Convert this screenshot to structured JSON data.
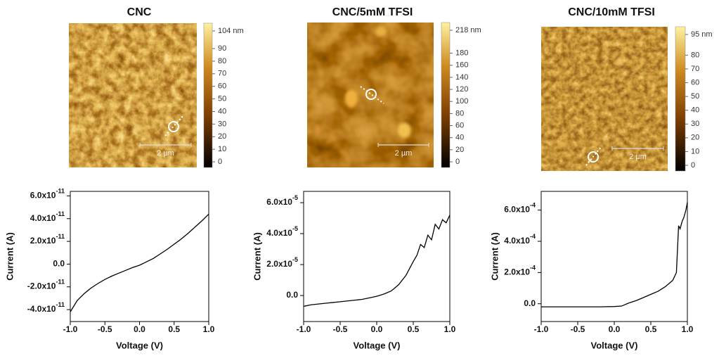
{
  "chart_data": [
    {
      "type": "line",
      "title": "CNC",
      "x_label": "Voltage (V)",
      "y_label": "Current (A)",
      "color": "#000000",
      "x": [
        -1.0,
        -0.9,
        -0.8,
        -0.7,
        -0.6,
        -0.5,
        -0.4,
        -0.3,
        -0.2,
        -0.1,
        0.0,
        0.1,
        0.2,
        0.3,
        0.4,
        0.5,
        0.6,
        0.7,
        0.8,
        0.9,
        1.0
      ],
      "values": [
        -4.2e-11,
        -3.2e-11,
        -2.6e-11,
        -2.1e-11,
        -1.7e-11,
        -1.35e-11,
        -1.05e-11,
        -8e-12,
        -5.5e-12,
        -3e-12,
        -1e-12,
        2e-12,
        5e-12,
        9e-12,
        1.3e-11,
        1.75e-11,
        2.2e-11,
        2.7e-11,
        3.25e-11,
        3.8e-11,
        4.4e-11
      ],
      "xlim": [
        -1.0,
        1.0
      ],
      "ylim": [
        -5.05e-11,
        6.4e-11
      ],
      "xticks": [
        {
          "value": -1.0,
          "label": "-1.0"
        },
        {
          "value": -0.5,
          "label": "-0.5"
        },
        {
          "value": 0.0,
          "label": "0.0"
        },
        {
          "value": 0.5,
          "label": "0.5"
        },
        {
          "value": 1.0,
          "label": "1.0"
        }
      ],
      "yticks": [
        {
          "value": -4e-11,
          "label": "-4.0x10-11"
        },
        {
          "value": -2e-11,
          "label": "-2.0x10-11"
        },
        {
          "value": 0,
          "label": "0.0"
        },
        {
          "value": 2e-11,
          "label": "2.0x10-11"
        },
        {
          "value": 4e-11,
          "label": "4.0x10-11"
        },
        {
          "value": 6e-11,
          "label": "6.0x10-11"
        }
      ],
      "image": {
        "scale_bar": "2 µm",
        "colorbar_lim": [
          0,
          104
        ],
        "colorbar_ticks": [
          0,
          10,
          20,
          30,
          40,
          50,
          60,
          70,
          80,
          90,
          {
            "value": 104,
            "label": "104 nm"
          }
        ]
      }
    },
    {
      "type": "line",
      "title": "CNC/5mM TFSI",
      "x_label": "Voltage (V)",
      "y_label": "Current (A)",
      "color": "#000000",
      "x": [
        -1.0,
        -0.9,
        -0.8,
        -0.7,
        -0.6,
        -0.5,
        -0.4,
        -0.3,
        -0.2,
        -0.1,
        0.0,
        0.1,
        0.2,
        0.3,
        0.4,
        0.5,
        0.55,
        0.6,
        0.65,
        0.7,
        0.75,
        0.8,
        0.85,
        0.9,
        0.95,
        1.0
      ],
      "values": [
        -7e-06,
        -6e-06,
        -5.5e-06,
        -5e-06,
        -4.5e-06,
        -4e-06,
        -3.5e-06,
        -3e-06,
        -2.5e-06,
        -1.5e-06,
        -5e-07,
        1e-06,
        3e-06,
        7e-06,
        1.3e-05,
        2.2e-05,
        2.6e-05,
        3.3e-05,
        3.1e-05,
        3.9e-05,
        3.6e-05,
        4.6e-05,
        4.3e-05,
        4.9e-05,
        4.7e-05,
        5.2e-05
      ],
      "xlim": [
        -1.0,
        1.0
      ],
      "ylim": [
        -1.68e-05,
        6.73e-05
      ],
      "xticks": [
        {
          "value": -1.0,
          "label": "-1.0"
        },
        {
          "value": -0.5,
          "label": "-0.5"
        },
        {
          "value": 0.0,
          "label": "0.0"
        },
        {
          "value": 0.5,
          "label": "0.5"
        },
        {
          "value": 1.0,
          "label": "1.0"
        }
      ],
      "yticks": [
        {
          "value": 0,
          "label": "0.0"
        },
        {
          "value": 2e-05,
          "label": "2.0x10-5"
        },
        {
          "value": 4e-05,
          "label": "4.0x10-5"
        },
        {
          "value": 6e-05,
          "label": "6.0x10-5"
        }
      ],
      "image": {
        "scale_bar": "2 µm",
        "colorbar_lim": [
          0,
          218
        ],
        "colorbar_ticks": [
          0,
          20,
          40,
          60,
          80,
          100,
          120,
          140,
          160,
          180,
          {
            "value": 218,
            "label": "218 nm"
          }
        ]
      }
    },
    {
      "type": "line",
      "title": "CNC/10mM TFSI",
      "x_label": "Voltage (V)",
      "y_label": "Current (A)",
      "color": "#000000",
      "x": [
        -1.0,
        -0.8,
        -0.6,
        -0.4,
        -0.2,
        0.0,
        0.1,
        0.2,
        0.3,
        0.4,
        0.5,
        0.6,
        0.7,
        0.8,
        0.85,
        0.88,
        0.9,
        0.93,
        0.95,
        0.98,
        1.0
      ],
      "values": [
        -2e-05,
        -2e-05,
        -2e-05,
        -2e-05,
        -2e-05,
        -1.8e-05,
        -1.5e-05,
        5e-06,
        2e-05,
        4e-05,
        6e-05,
        8e-05,
        0.00011,
        0.00015,
        0.0002,
        0.0005,
        0.00048,
        0.00053,
        0.00055,
        0.0006,
        0.00065
      ],
      "xlim": [
        -1.0,
        1.0
      ],
      "ylim": [
        -0.000114,
        0.00072
      ],
      "xticks": [
        {
          "value": -1.0,
          "label": "-1.0"
        },
        {
          "value": -0.5,
          "label": "-0.5"
        },
        {
          "value": 0.0,
          "label": "0.0"
        },
        {
          "value": 0.5,
          "label": "0.5"
        },
        {
          "value": 1.0,
          "label": "1.0"
        }
      ],
      "yticks": [
        {
          "value": 0,
          "label": "0.0"
        },
        {
          "value": 0.0002,
          "label": "2.0x10-4"
        },
        {
          "value": 0.0004,
          "label": "4.0x10-4"
        },
        {
          "value": 0.0006,
          "label": "6.0x10-4"
        }
      ],
      "image": {
        "scale_bar": "2 µm",
        "colorbar_lim": [
          0,
          95
        ],
        "colorbar_ticks": [
          0,
          10,
          20,
          30,
          40,
          50,
          60,
          70,
          80,
          {
            "value": 95,
            "label": "95 nm"
          }
        ]
      }
    }
  ]
}
